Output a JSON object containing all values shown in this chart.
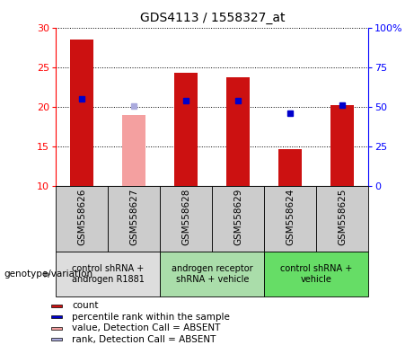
{
  "title": "GDS4113 / 1558327_at",
  "samples": [
    "GSM558626",
    "GSM558627",
    "GSM558628",
    "GSM558629",
    "GSM558624",
    "GSM558625"
  ],
  "bar_values": [
    28.5,
    19.0,
    24.3,
    23.7,
    14.7,
    20.2
  ],
  "bar_absent": [
    false,
    true,
    false,
    false,
    false,
    false
  ],
  "bar_color_present": "#cc1111",
  "bar_color_absent": "#f4a0a0",
  "dot_values": [
    21.0,
    20.1,
    20.8,
    20.8,
    19.2,
    20.2
  ],
  "dot_absent": [
    false,
    true,
    false,
    false,
    false,
    false
  ],
  "dot_color_present": "#0000cc",
  "dot_color_absent": "#aaaadd",
  "ylim": [
    10,
    30
  ],
  "yticks": [
    10,
    15,
    20,
    25,
    30
  ],
  "y2lim": [
    0,
    100
  ],
  "y2ticks": [
    0,
    25,
    50,
    75,
    100
  ],
  "y2ticklabels": [
    "0",
    "25",
    "50",
    "75",
    "100%"
  ],
  "groups": [
    {
      "label": "control shRNA +\nandrogen R1881",
      "color": "#dddddd",
      "indices": [
        0,
        1
      ]
    },
    {
      "label": "androgen receptor\nshRNA + vehicle",
      "color": "#aaddaa",
      "indices": [
        2,
        3
      ]
    },
    {
      "label": "control shRNA +\nvehicle",
      "color": "#66dd66",
      "indices": [
        4,
        5
      ]
    }
  ],
  "sample_bg_color": "#cccccc",
  "legend_items": [
    {
      "color": "#cc1111",
      "label": "count"
    },
    {
      "color": "#0000cc",
      "label": "percentile rank within the sample"
    },
    {
      "color": "#f4a0a0",
      "label": "value, Detection Call = ABSENT"
    },
    {
      "color": "#aaaadd",
      "label": "rank, Detection Call = ABSENT"
    }
  ],
  "xlabel_genotype": "genotype/variation"
}
